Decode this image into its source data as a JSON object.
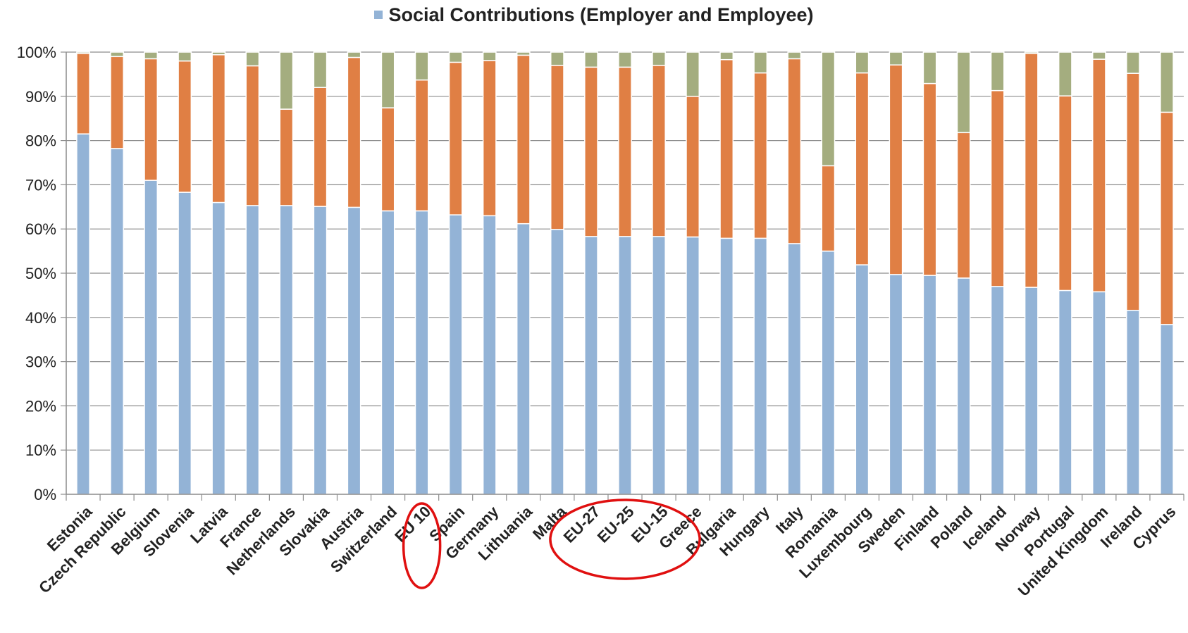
{
  "chart_data": {
    "type": "bar",
    "stacked": true,
    "legend": {
      "placement": "top",
      "visible_entries": [
        "Social Contributions (Employer and Employee)"
      ]
    },
    "categories": [
      "Estonia",
      "Czech Republic",
      "Belgium",
      "Slovenia",
      "Latvia",
      "France",
      "Netherlands",
      "Slovakia",
      "Austria",
      "Switzerland",
      "EU 10",
      "Spain",
      "Germany",
      "Lithuania",
      "Malta",
      "EU-27",
      "EU-25",
      "EU-15",
      "Greece",
      "Bulgaria",
      "Hungary",
      "Italy",
      "Romania",
      "Luxembourg",
      "Sweden",
      "Finland",
      "Poland",
      "Iceland",
      "Norway",
      "Portugal",
      "United Kingdom",
      "Ireland",
      "Cyprus"
    ],
    "series": [
      {
        "name": "Social Contributions (Employer and Employee)",
        "color": "#93b3d6",
        "values": [
          81.5,
          78.2,
          71,
          68.3,
          66,
          65.3,
          65.3,
          65.1,
          64.9,
          64.1,
          64.1,
          63.2,
          63,
          61.2,
          59.9,
          58.3,
          58.3,
          58.3,
          58.2,
          57.9,
          57.9,
          56.7,
          55,
          51.9,
          49.7,
          49.5,
          48.9,
          47,
          46.8,
          46.1,
          45.8,
          41.6,
          38.4
        ]
      },
      {
        "color": "#e07f44",
        "values": [
          18.2,
          20.8,
          27.5,
          29.7,
          33.4,
          31.6,
          21.8,
          26.9,
          33.9,
          23.3,
          29.6,
          34.5,
          35.1,
          38.1,
          37.1,
          38.3,
          38.3,
          38.7,
          31.8,
          40.4,
          37.4,
          41.8,
          19.3,
          43.4,
          47.4,
          43.4,
          32.9,
          44.3,
          52.9,
          44,
          52.6,
          53.6,
          48
        ]
      },
      {
        "color": "#a4ad7f",
        "values": [
          0.3,
          1,
          1.5,
          2,
          0.6,
          3.1,
          12.9,
          8,
          1.2,
          12.6,
          6.3,
          2.3,
          1.9,
          0.7,
          3,
          3.4,
          3.4,
          3,
          10,
          1.7,
          4.7,
          1.5,
          25.7,
          4.7,
          2.9,
          7.1,
          18.2,
          8.7,
          0.3,
          9.9,
          1.6,
          4.8,
          13.6
        ]
      }
    ],
    "y_ticks": [
      "0%",
      "10%",
      "20%",
      "30%",
      "40%",
      "50%",
      "60%",
      "70%",
      "80%",
      "90%",
      "100%"
    ],
    "ylim": [
      0,
      100
    ],
    "grid": true,
    "annotations": [
      {
        "type": "ellipse",
        "color": "#e01010",
        "around_categories": [
          "EU 10"
        ]
      },
      {
        "type": "ellipse",
        "color": "#e01010",
        "around_categories": [
          "EU-27",
          "EU-25",
          "EU-15"
        ]
      }
    ]
  }
}
